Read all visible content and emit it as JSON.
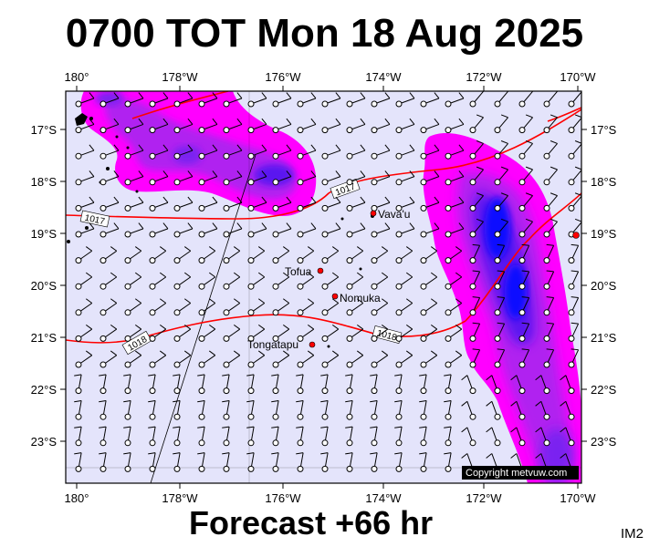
{
  "title": "0700 TOT Mon 18 Aug 2025",
  "subtitle": "Forecast +66 hr",
  "badge": "IM2",
  "copyright": "Copyright metvuw.com",
  "colors": {
    "background": "#e4e4fb",
    "precip_light": "#ff00ff",
    "precip_mid": "#b020f0",
    "precip_heavy": "#5a18f0",
    "precip_core": "#1010ff",
    "isobar": "#ff0000",
    "town_marker": "#ff0000"
  },
  "top_lon_labels": [
    "180°",
    "178°W",
    "176°W",
    "174°W",
    "172°W",
    "170°W"
  ],
  "bottom_lon_labels": [
    "180°",
    "178°W",
    "176°W",
    "174°W",
    "172°W",
    "170°W"
  ],
  "left_lat_labels": [
    "17°S",
    "18°S",
    "19°S",
    "20°S",
    "21°S",
    "22°S",
    "23°S"
  ],
  "right_lat_labels": [
    "17°S",
    "18°S",
    "19°S",
    "20°S",
    "21°S",
    "22°S",
    "23°S"
  ],
  "isobars": [
    {
      "label": "1017"
    },
    {
      "label": "1017"
    },
    {
      "label": "1018"
    },
    {
      "label": "1018"
    }
  ],
  "places": [
    {
      "name": "Vava'u"
    },
    {
      "name": "Tofua"
    },
    {
      "name": "Nomuka"
    },
    {
      "name": "Tongatapu"
    }
  ]
}
